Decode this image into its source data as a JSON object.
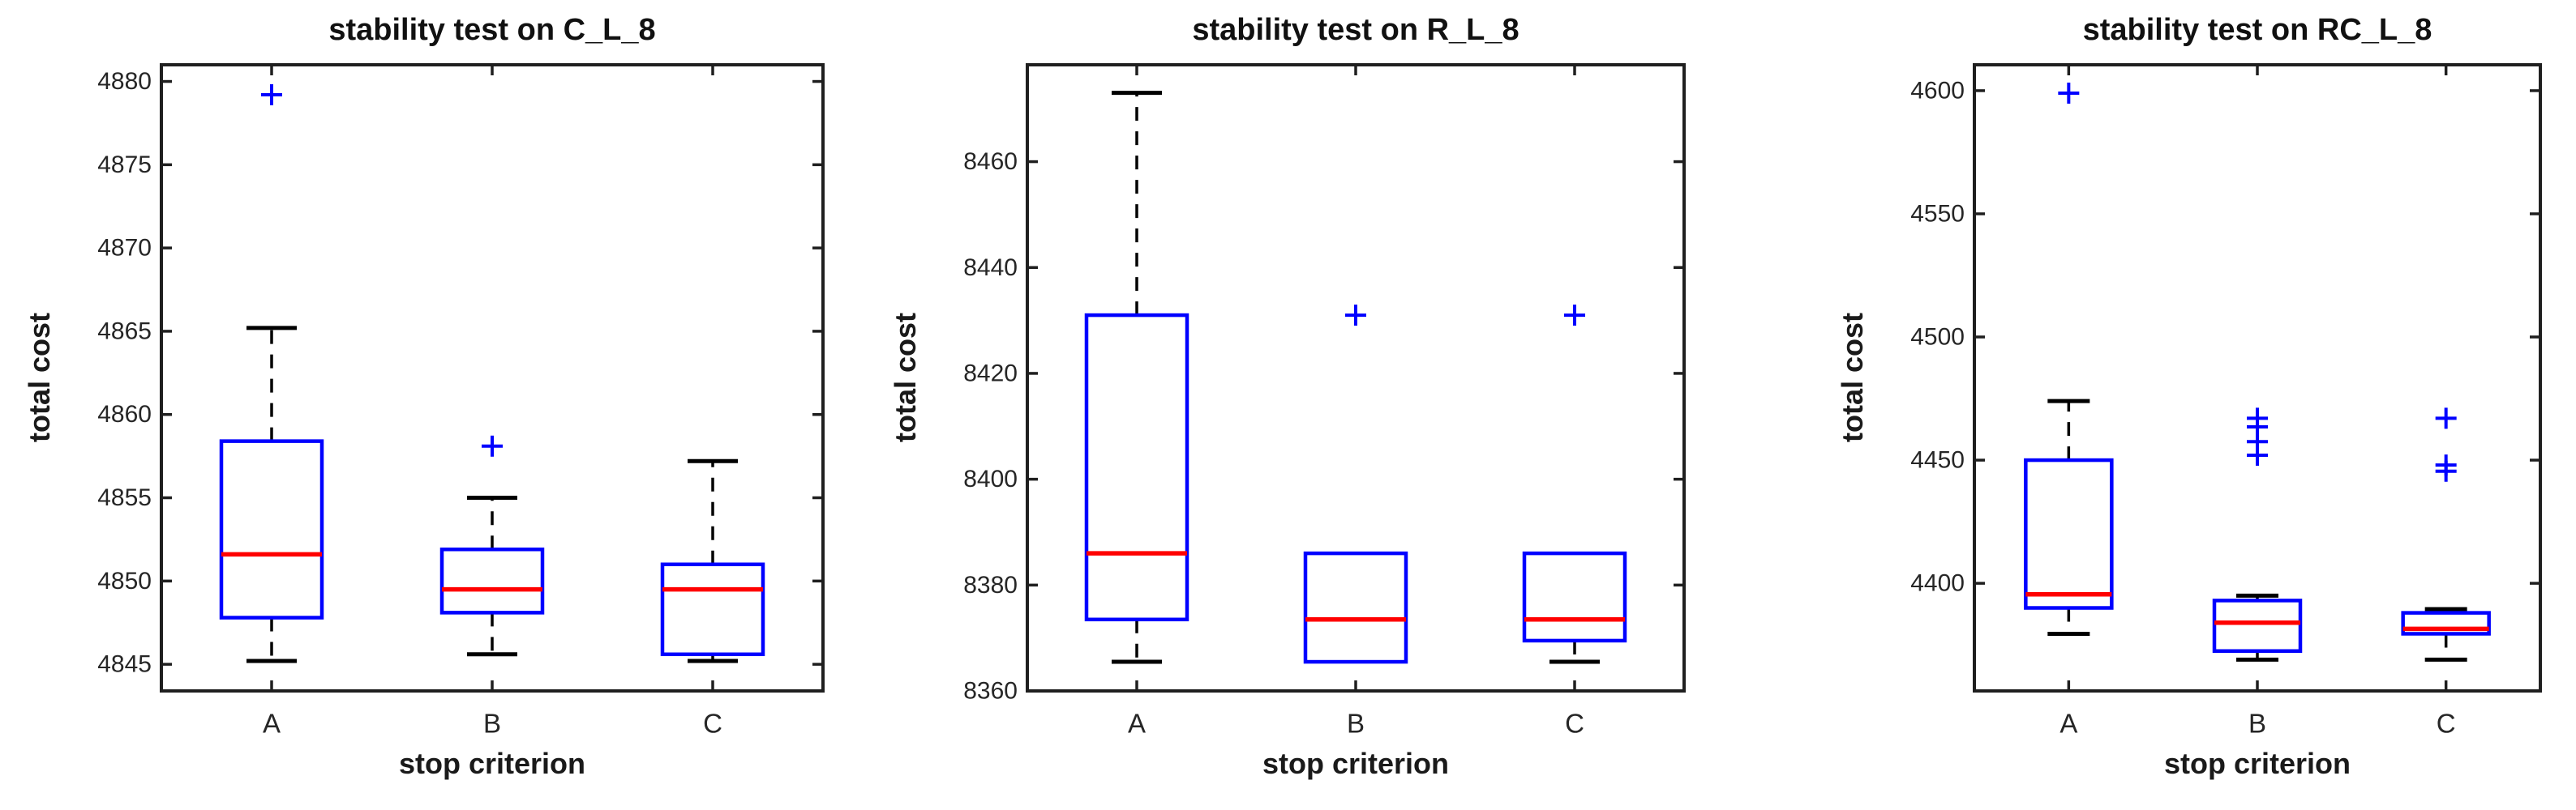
{
  "figure": {
    "background": "#ffffff",
    "box_color": "#0000ff",
    "median_color": "#ff0000",
    "outlier_color": "#0000ff",
    "whisker_color": "#000000",
    "axis_color": "#1f1f1f",
    "tick_text_color": "#262626"
  },
  "chart_data": [
    {
      "type": "boxplot",
      "title": "stability test on C_L_8",
      "xlabel": "stop criterion",
      "ylabel": "total cost",
      "categories": [
        "A",
        "B",
        "C"
      ],
      "ylim": [
        4843.4,
        4881.0
      ],
      "yticks": [
        4845,
        4850,
        4855,
        4860,
        4865,
        4870,
        4875,
        4880
      ],
      "grid": false,
      "series": [
        {
          "category": "A",
          "whisker_low": 4845.2,
          "q1": 4847.8,
          "median": 4851.6,
          "q3": 4858.4,
          "whisker_high": 4865.2,
          "outliers": [
            4879.2
          ]
        },
        {
          "category": "B",
          "whisker_low": 4845.6,
          "q1": 4848.1,
          "median": 4849.5,
          "q3": 4851.9,
          "whisker_high": 4855.0,
          "outliers": [
            4858.1
          ]
        },
        {
          "category": "C",
          "whisker_low": 4845.2,
          "q1": 4845.6,
          "median": 4849.5,
          "q3": 4851.0,
          "whisker_high": 4857.2,
          "outliers": []
        }
      ]
    },
    {
      "type": "boxplot",
      "title": "stability test on R_L_8",
      "xlabel": "stop criterion",
      "ylabel": "total cost",
      "categories": [
        "A",
        "B",
        "C"
      ],
      "ylim": [
        8360,
        8478.3
      ],
      "yticks": [
        8360,
        8380,
        8400,
        8420,
        8440,
        8460
      ],
      "grid": false,
      "series": [
        {
          "category": "A",
          "whisker_low": 8365.5,
          "q1": 8373.5,
          "median": 8386.0,
          "q3": 8431.0,
          "whisker_high": 8473.0,
          "outliers": []
        },
        {
          "category": "B",
          "whisker_low": 8365.5,
          "q1": 8365.5,
          "median": 8373.5,
          "q3": 8386.0,
          "whisker_high": 8386.0,
          "outliers": [
            8431.0
          ]
        },
        {
          "category": "C",
          "whisker_low": 8365.5,
          "q1": 8369.5,
          "median": 8373.5,
          "q3": 8386.0,
          "whisker_high": 8386.0,
          "outliers": [
            8431.0
          ]
        }
      ]
    },
    {
      "type": "boxplot",
      "title": "stability test on RC_L_8",
      "xlabel": "stop criterion",
      "ylabel": "total cost",
      "categories": [
        "A",
        "B",
        "C"
      ],
      "ylim": [
        4356.3,
        4610.5
      ],
      "yticks": [
        4400,
        4450,
        4500,
        4550,
        4600
      ],
      "grid": false,
      "series": [
        {
          "category": "A",
          "whisker_low": 4379.5,
          "q1": 4390.0,
          "median": 4395.5,
          "q3": 4450.0,
          "whisker_high": 4474.0,
          "outliers": [
            4599.0
          ]
        },
        {
          "category": "B",
          "whisker_low": 4369.0,
          "q1": 4372.5,
          "median": 4384.0,
          "q3": 4393.0,
          "whisker_high": 4395.0,
          "outliers": [
            4467.0,
            4463.5,
            4457.5,
            4452.0
          ]
        },
        {
          "category": "C",
          "whisker_low": 4369.0,
          "q1": 4379.5,
          "median": 4381.5,
          "q3": 4388.0,
          "whisker_high": 4389.5,
          "outliers": [
            4467.0,
            4448.0,
            4445.5
          ]
        }
      ]
    }
  ]
}
